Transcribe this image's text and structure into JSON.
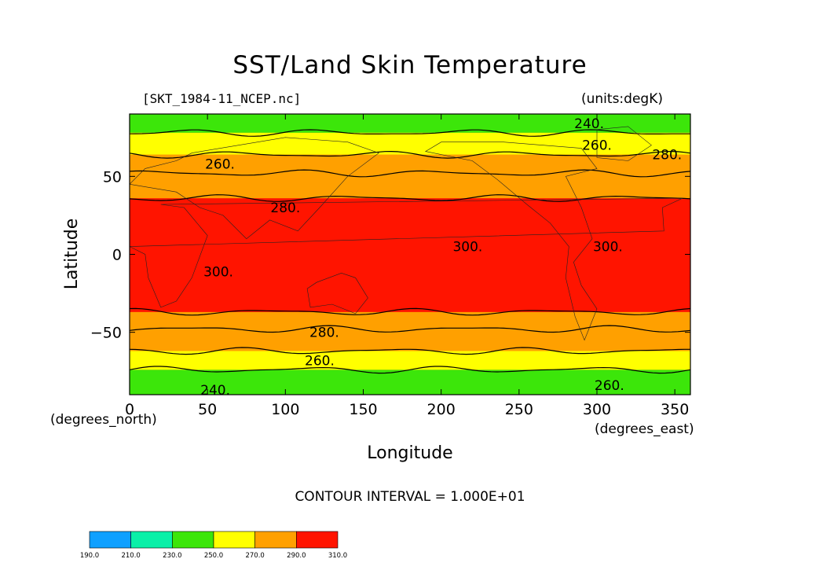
{
  "chart_data": {
    "type": "heatmap",
    "title": "SST/Land Skin Temperature",
    "file_label": "[SKT_1984-11_NCEP.nc]",
    "units_label": "(units:degK)",
    "xlabel": "Longitude",
    "ylabel": "Latitude",
    "x_units": "(degrees_east)",
    "y_units": "(degrees_north)",
    "xlim": [
      0,
      360
    ],
    "ylim": [
      -90,
      90
    ],
    "x_ticks": [
      0,
      50,
      100,
      150,
      200,
      250,
      300,
      350
    ],
    "y_ticks": [
      -50,
      0,
      50
    ],
    "contour_interval_text": "CONTOUR INTERVAL = 1.000E+01",
    "levels": [
      190.0,
      210.0,
      230.0,
      250.0,
      270.0,
      290.0,
      310.0
    ],
    "level_labels": [
      "190.0",
      "210.0",
      "230.0",
      "250.0",
      "270.0",
      "290.0",
      "310.0"
    ],
    "colors": [
      "#0fa0ff",
      "#0af0a8",
      "#3ce60a",
      "#ffff00",
      "#ffa000",
      "#ff1400"
    ],
    "bands_south_to_north": [
      {
        "lat": [
          -90,
          -74
        ],
        "category": "230-250"
      },
      {
        "lat": [
          -74,
          -62
        ],
        "category": "250-270"
      },
      {
        "lat": [
          -62,
          -37
        ],
        "category": "270-290"
      },
      {
        "lat": [
          -37,
          36
        ],
        "category": "290-310"
      },
      {
        "lat": [
          36,
          64
        ],
        "category": "270-290"
      },
      {
        "lat": [
          64,
          78
        ],
        "category": "250-270"
      },
      {
        "lat": [
          78,
          90
        ],
        "category": "230-250"
      }
    ],
    "contour_labels": [
      {
        "text": "240.",
        "lon": 295,
        "lat": 84
      },
      {
        "text": "260.",
        "lon": 300,
        "lat": 70
      },
      {
        "text": "280.",
        "lon": 345,
        "lat": 64
      },
      {
        "text": "260.",
        "lon": 58,
        "lat": 58
      },
      {
        "text": "280.",
        "lon": 100,
        "lat": 30
      },
      {
        "text": "300.",
        "lon": 57,
        "lat": -11
      },
      {
        "text": "300.",
        "lon": 217,
        "lat": 5
      },
      {
        "text": "300.",
        "lon": 307,
        "lat": 5
      },
      {
        "text": "280.",
        "lon": 125,
        "lat": -50
      },
      {
        "text": "260.",
        "lon": 122,
        "lat": -68
      },
      {
        "text": "240.",
        "lon": 55,
        "lat": -87
      },
      {
        "text": "260.",
        "lon": 308,
        "lat": -84
      }
    ]
  }
}
